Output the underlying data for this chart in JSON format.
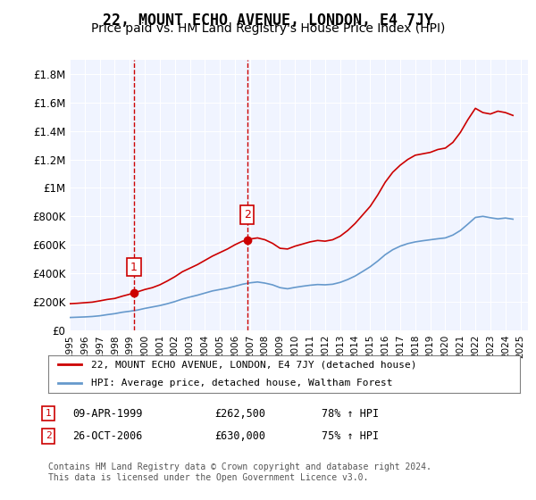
{
  "title": "22, MOUNT ECHO AVENUE, LONDON, E4 7JY",
  "subtitle": "Price paid vs. HM Land Registry's House Price Index (HPI)",
  "title_fontsize": 12,
  "subtitle_fontsize": 10,
  "ylabel_fontsize": 9,
  "xlabel_fontsize": 8,
  "ylim": [
    0,
    1900000
  ],
  "yticks": [
    0,
    200000,
    400000,
    600000,
    800000,
    1000000,
    1200000,
    1400000,
    1600000,
    1800000
  ],
  "ytick_labels": [
    "£0",
    "£200K",
    "£400K",
    "£600K",
    "£800K",
    "£1M",
    "£1.2M",
    "£1.4M",
    "£1.6M",
    "£1.8M"
  ],
  "xlim_start": 1995.0,
  "xlim_end": 2025.5,
  "background_color": "#ffffff",
  "plot_background": "#f0f4ff",
  "grid_color": "#ffffff",
  "line1_color": "#cc0000",
  "line2_color": "#6699cc",
  "vline1_x": 1999.27,
  "vline2_x": 2006.82,
  "vline_color": "#cc0000",
  "marker1_val": 262500,
  "marker1_year": 1999.27,
  "marker2_val": 630000,
  "marker2_year": 2006.82,
  "legend_line1": "22, MOUNT ECHO AVENUE, LONDON, E4 7JY (detached house)",
  "legend_line2": "HPI: Average price, detached house, Waltham Forest",
  "table_row1_num": "1",
  "table_row1_date": "09-APR-1999",
  "table_row1_price": "£262,500",
  "table_row1_hpi": "78% ↑ HPI",
  "table_row2_num": "2",
  "table_row2_date": "26-OCT-2006",
  "table_row2_price": "£630,000",
  "table_row2_hpi": "75% ↑ HPI",
  "footer": "Contains HM Land Registry data © Crown copyright and database right 2024.\nThis data is licensed under the Open Government Licence v3.0.",
  "hpi_red_x": [
    1995.0,
    1995.5,
    1996.0,
    1996.5,
    1997.0,
    1997.5,
    1998.0,
    1998.5,
    1999.0,
    1999.27,
    1999.5,
    2000.0,
    2000.5,
    2001.0,
    2001.5,
    2002.0,
    2002.5,
    2003.0,
    2003.5,
    2004.0,
    2004.5,
    2005.0,
    2005.5,
    2006.0,
    2006.5,
    2006.82,
    2007.0,
    2007.5,
    2008.0,
    2008.5,
    2009.0,
    2009.5,
    2010.0,
    2010.5,
    2011.0,
    2011.5,
    2012.0,
    2012.5,
    2013.0,
    2013.5,
    2014.0,
    2014.5,
    2015.0,
    2015.5,
    2016.0,
    2016.5,
    2017.0,
    2017.5,
    2018.0,
    2018.5,
    2019.0,
    2019.5,
    2020.0,
    2020.5,
    2021.0,
    2021.5,
    2022.0,
    2022.5,
    2023.0,
    2023.5,
    2024.0,
    2024.5
  ],
  "hpi_red_y": [
    185000,
    188000,
    192000,
    196000,
    205000,
    215000,
    222000,
    238000,
    252000,
    262500,
    268000,
    285000,
    298000,
    318000,
    345000,
    375000,
    410000,
    435000,
    460000,
    490000,
    520000,
    545000,
    570000,
    600000,
    625000,
    630000,
    640000,
    648000,
    635000,
    610000,
    575000,
    570000,
    590000,
    605000,
    620000,
    630000,
    625000,
    635000,
    660000,
    700000,
    750000,
    810000,
    870000,
    950000,
    1040000,
    1110000,
    1160000,
    1200000,
    1230000,
    1240000,
    1250000,
    1270000,
    1280000,
    1320000,
    1390000,
    1480000,
    1560000,
    1530000,
    1520000,
    1540000,
    1530000,
    1510000
  ],
  "hpi_blue_x": [
    1995.0,
    1995.5,
    1996.0,
    1996.5,
    1997.0,
    1997.5,
    1998.0,
    1998.5,
    1999.0,
    1999.5,
    2000.0,
    2000.5,
    2001.0,
    2001.5,
    2002.0,
    2002.5,
    2003.0,
    2003.5,
    2004.0,
    2004.5,
    2005.0,
    2005.5,
    2006.0,
    2006.5,
    2007.0,
    2007.5,
    2008.0,
    2008.5,
    2009.0,
    2009.5,
    2010.0,
    2010.5,
    2011.0,
    2011.5,
    2012.0,
    2012.5,
    2013.0,
    2013.5,
    2014.0,
    2014.5,
    2015.0,
    2015.5,
    2016.0,
    2016.5,
    2017.0,
    2017.5,
    2018.0,
    2018.5,
    2019.0,
    2019.5,
    2020.0,
    2020.5,
    2021.0,
    2021.5,
    2022.0,
    2022.5,
    2023.0,
    2023.5,
    2024.0,
    2024.5
  ],
  "hpi_blue_y": [
    88000,
    90000,
    92000,
    95000,
    100000,
    108000,
    115000,
    125000,
    132000,
    140000,
    152000,
    162000,
    172000,
    185000,
    200000,
    218000,
    232000,
    245000,
    260000,
    275000,
    285000,
    295000,
    308000,
    322000,
    332000,
    338000,
    330000,
    318000,
    298000,
    290000,
    300000,
    308000,
    315000,
    320000,
    318000,
    322000,
    335000,
    355000,
    380000,
    412000,
    445000,
    485000,
    530000,
    565000,
    590000,
    608000,
    620000,
    628000,
    635000,
    642000,
    648000,
    668000,
    700000,
    745000,
    792000,
    800000,
    790000,
    782000,
    788000,
    780000
  ]
}
